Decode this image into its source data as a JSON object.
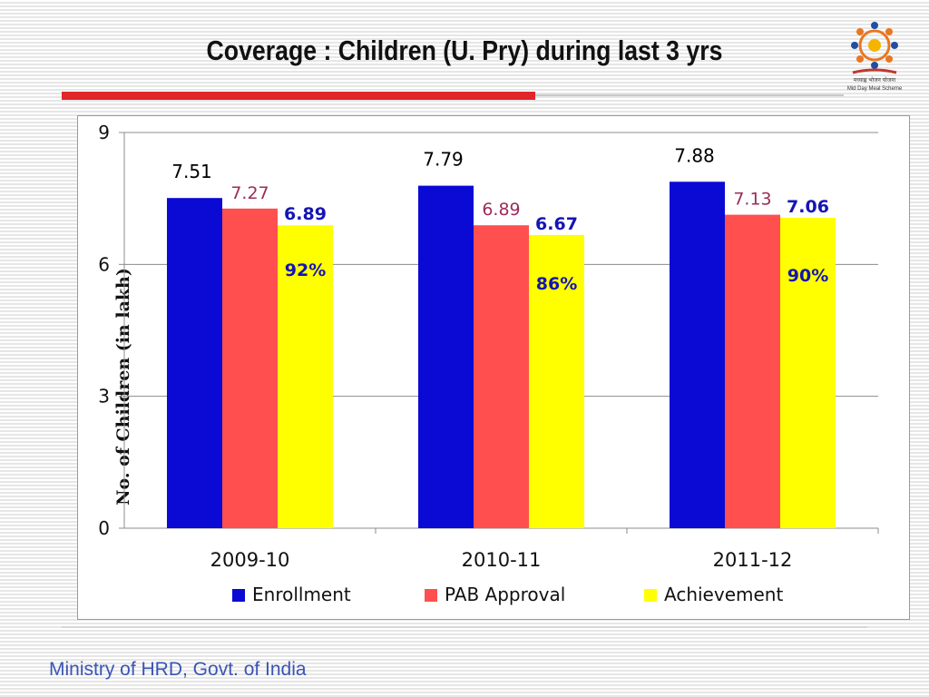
{
  "slide": {
    "title": "Coverage : Children (U. Pry) during last 3 yrs",
    "footer": "Ministry of HRD, Govt. of India",
    "logo_text_hindi": "मध्याह्न भोजन योजना",
    "logo_text_en": "Mid Day Meal Scheme"
  },
  "colors": {
    "Enrollment": "#0a0ad4",
    "PAB Approval": "#ff4f4f",
    "Achievement": "#ffff00",
    "enrollment_label": "#000000",
    "pab_label": "#9b2c5a",
    "achievement_label": "#1414b4",
    "title_rule": "#e0252b"
  },
  "chart_data": {
    "type": "bar",
    "ylabel": "No. of Children (in lakh)",
    "xlabel": "",
    "ylim": [
      0,
      9
    ],
    "yticks": [
      0,
      3,
      6,
      9
    ],
    "grid": true,
    "legend_position": "bottom",
    "categories": [
      "2009-10",
      "2010-11",
      "2011-12"
    ],
    "series": [
      {
        "name": "Enrollment",
        "values": [
          7.51,
          7.79,
          7.88
        ],
        "labels": [
          "7.51",
          "7.79",
          "7.88"
        ]
      },
      {
        "name": "PAB Approval",
        "values": [
          7.27,
          6.89,
          7.13
        ],
        "labels": [
          "7.27",
          "6.89",
          "7.13"
        ]
      },
      {
        "name": "Achievement",
        "values": [
          6.89,
          6.67,
          7.06
        ],
        "labels": [
          "6.89",
          "6.67",
          "7.06"
        ]
      }
    ],
    "annotations": [
      "92%",
      "86%",
      "90%"
    ]
  }
}
